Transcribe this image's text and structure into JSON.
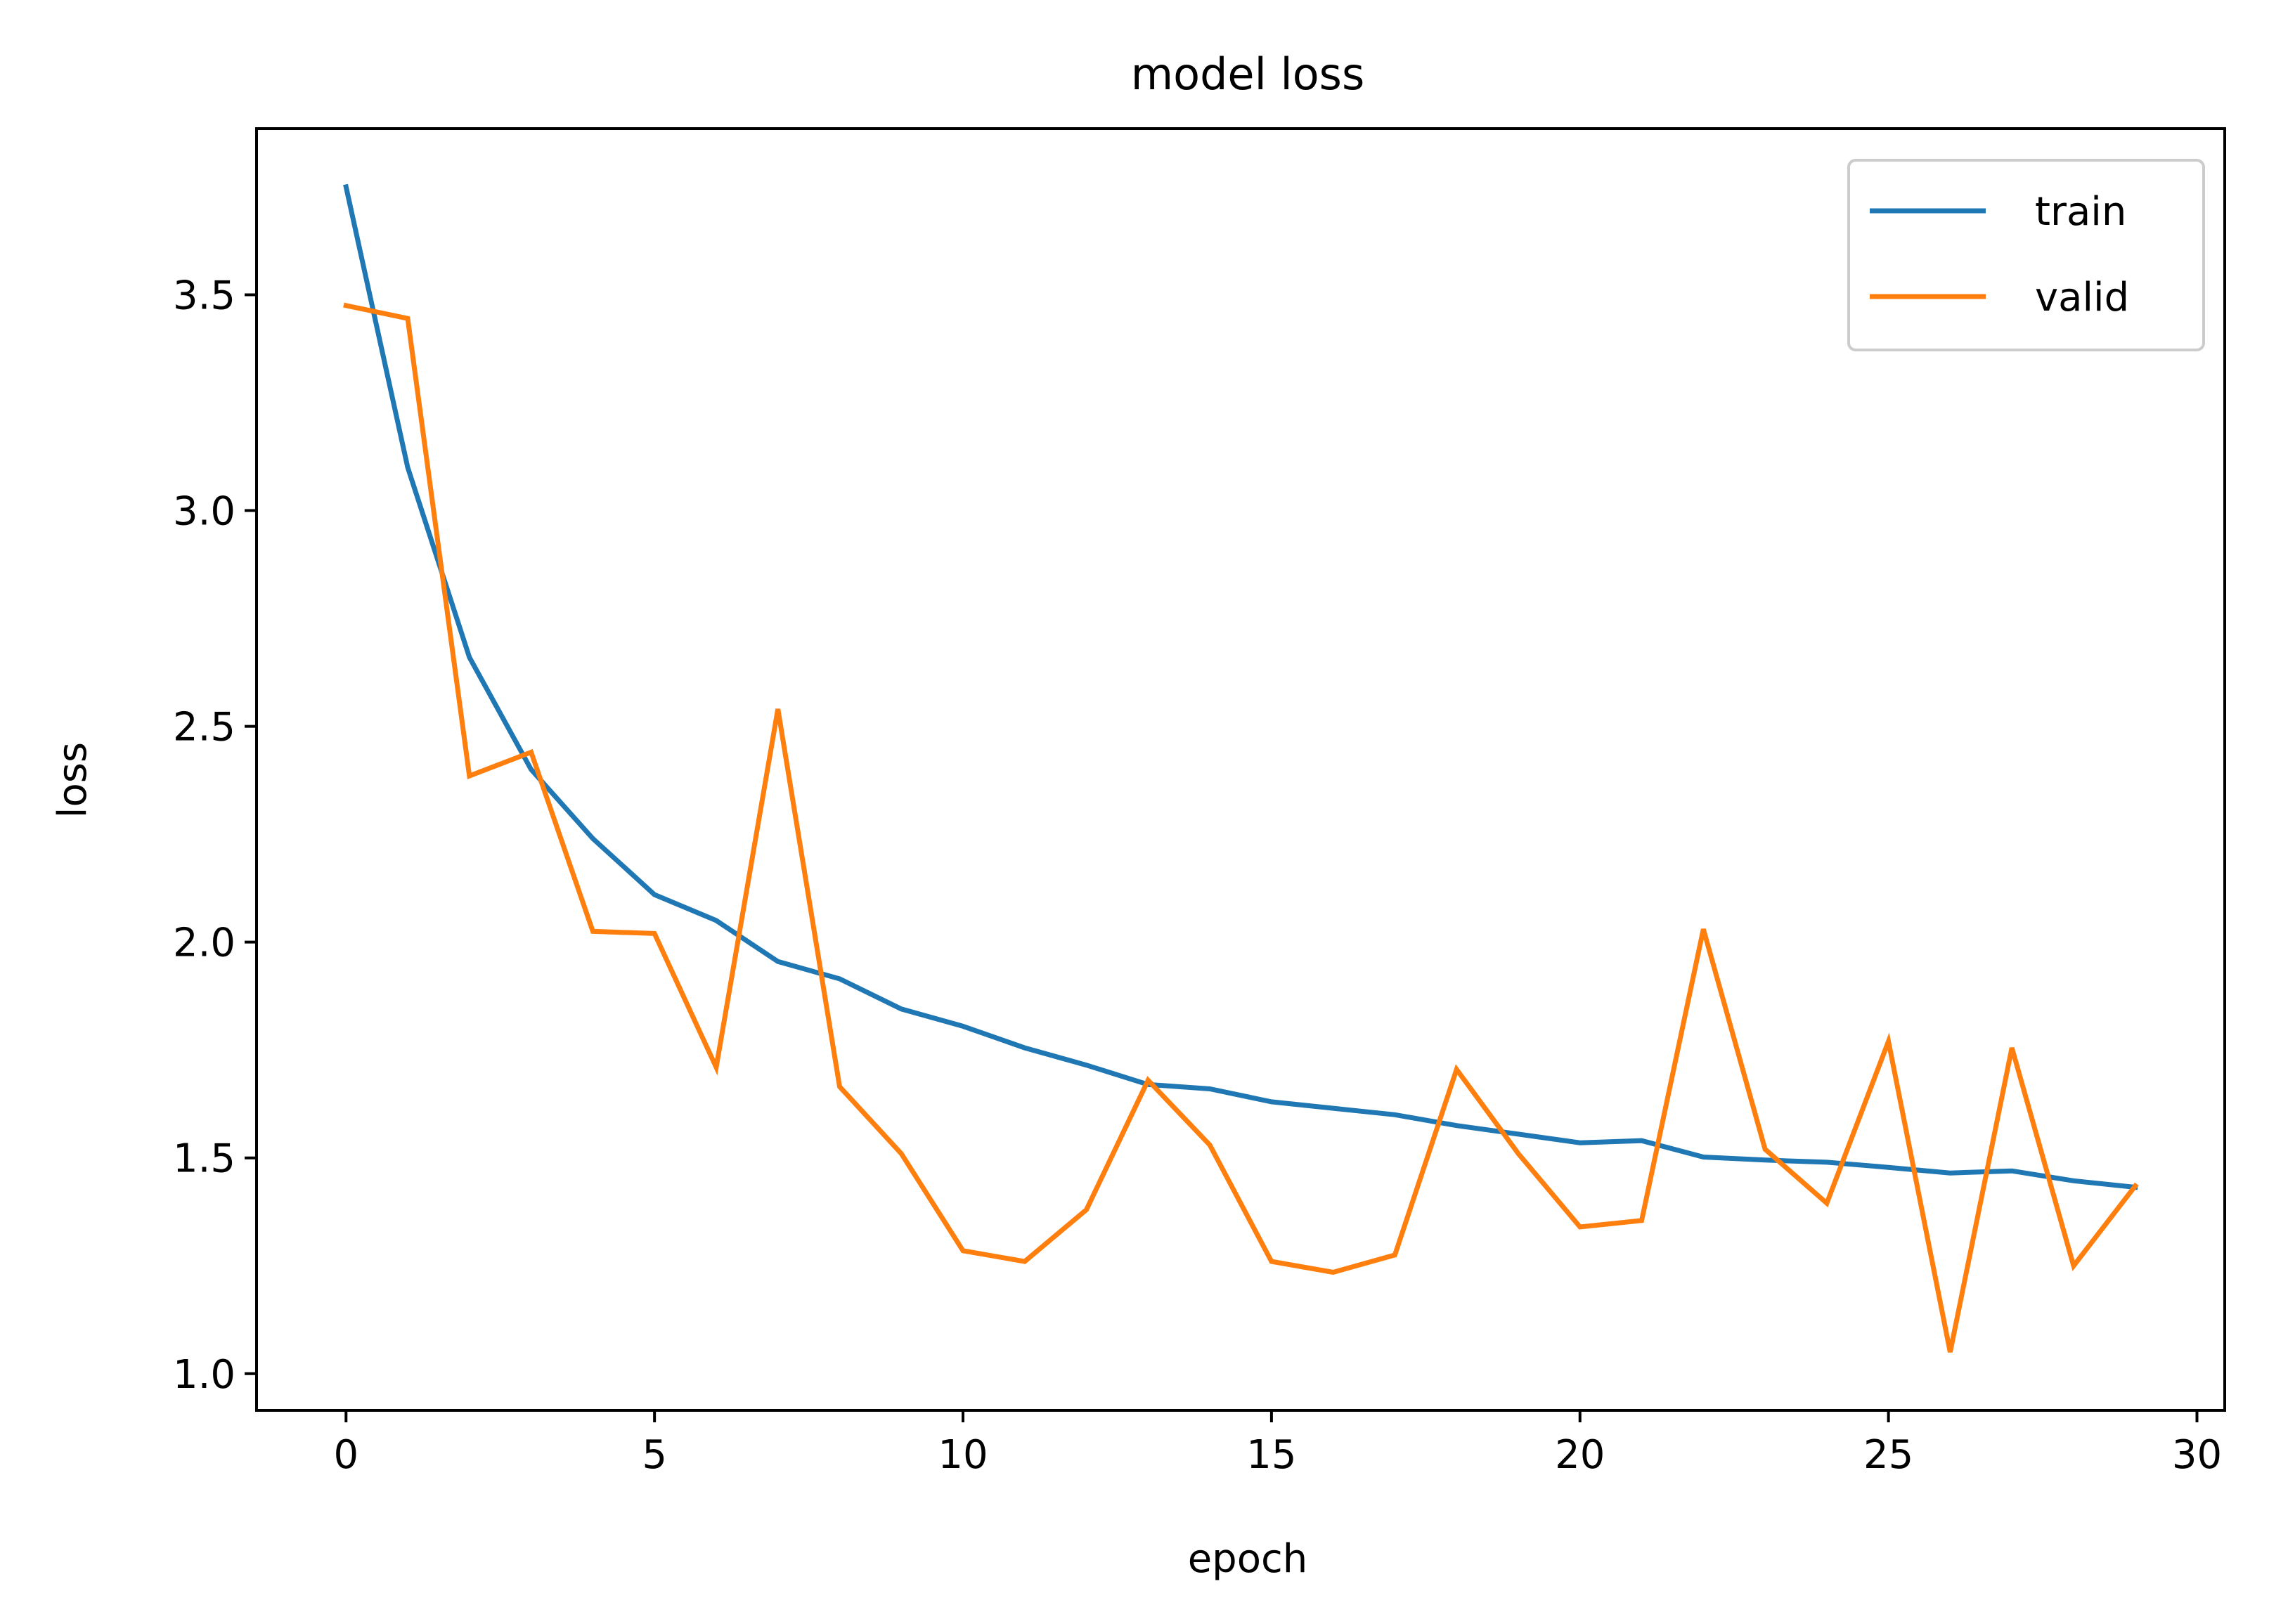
{
  "chart_data": {
    "type": "line",
    "title": "model loss",
    "xlabel": "epoch",
    "ylabel": "loss",
    "xlim": [
      -1.45,
      30.45
    ],
    "ylim": [
      0.915,
      3.885
    ],
    "xticks": [
      0,
      5,
      10,
      15,
      20,
      25,
      30
    ],
    "yticks": [
      1.0,
      1.5,
      2.0,
      2.5,
      3.0,
      3.5
    ],
    "ytick_labels": [
      "1.0",
      "1.5",
      "2.0",
      "2.5",
      "3.0",
      "3.5"
    ],
    "grid": false,
    "legend_position": "top-right",
    "x": [
      0,
      1,
      2,
      3,
      4,
      5,
      6,
      7,
      8,
      9,
      10,
      11,
      12,
      13,
      14,
      15,
      16,
      17,
      18,
      19,
      20,
      21,
      22,
      23,
      24,
      25,
      26,
      27,
      28,
      29
    ],
    "series": [
      {
        "name": "train",
        "color": "#1f77b4",
        "values": [
          3.75,
          3.1,
          2.66,
          2.4,
          2.24,
          2.11,
          2.05,
          1.955,
          1.915,
          1.845,
          1.805,
          1.755,
          1.715,
          1.67,
          1.66,
          1.63,
          1.615,
          1.6,
          1.575,
          1.555,
          1.535,
          1.54,
          1.502,
          1.495,
          1.49,
          1.478,
          1.465,
          1.47,
          1.447,
          1.432
        ]
      },
      {
        "name": "valid",
        "color": "#ff7f0e",
        "values": [
          3.475,
          3.445,
          2.385,
          2.44,
          2.025,
          2.02,
          1.71,
          2.54,
          1.665,
          1.51,
          1.285,
          1.26,
          1.38,
          1.68,
          1.53,
          1.26,
          1.235,
          1.275,
          1.705,
          1.51,
          1.34,
          1.355,
          2.03,
          1.52,
          1.395,
          1.77,
          1.05,
          1.755,
          1.25,
          1.435
        ]
      }
    ]
  }
}
